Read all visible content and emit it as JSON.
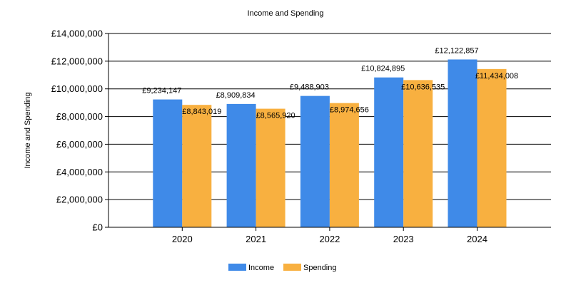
{
  "chart_data": {
    "type": "bar",
    "title": "Income and Spending",
    "ylabel": "Income and Spending",
    "xlabel": "",
    "categories": [
      "2020",
      "2021",
      "2022",
      "2023",
      "2024"
    ],
    "series": [
      {
        "name": "Income",
        "color": "#3f8ae8",
        "values": [
          9234147,
          8909834,
          9488903,
          10824895,
          12122857
        ],
        "labels": [
          "£9,234,147",
          "£8,909,834",
          "£9,488,903",
          "£10,824,895",
          "£12,122,857"
        ]
      },
      {
        "name": "Spending",
        "color": "#f8b040",
        "values": [
          8843019,
          8565920,
          8974656,
          10636535,
          11434008
        ],
        "labels": [
          "£8,843,019",
          "£8,565,920",
          "£8,974,656",
          "£10,636,535",
          "£11,434,008"
        ]
      }
    ],
    "ylim": [
      0,
      14000000
    ],
    "yticks": [
      0,
      2000000,
      4000000,
      6000000,
      8000000,
      10000000,
      12000000,
      14000000
    ],
    "ytick_labels": [
      "£0",
      "£2,000,000",
      "£4,000,000",
      "£6,000,000",
      "£8,000,000",
      "£10,000,000",
      "£12,000,000",
      "£14,000,000"
    ],
    "grid": true,
    "legend": "bottom-center"
  }
}
